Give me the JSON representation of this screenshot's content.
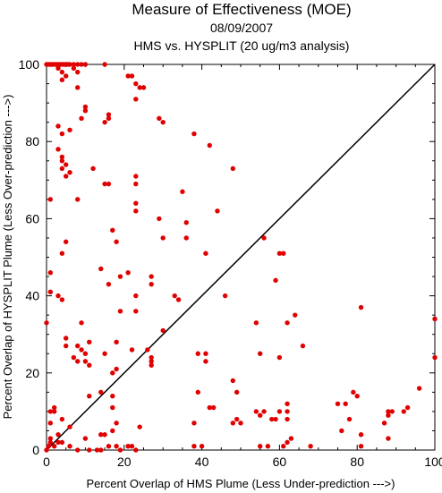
{
  "chart_data": {
    "type": "scatter",
    "title": "Measure of Effectiveness (MOE)",
    "subtitle_date": "08/09/2007",
    "subtitle": "HMS vs. HYSPLIT  (20 ug/m3 analysis)",
    "xlabel": "Percent Overlap of HMS Plume (Less Under-prediction --->)",
    "ylabel": "Percent Overlap of HYSPLIT Plume (Less Over-prediction --->)",
    "xlim": [
      0,
      100
    ],
    "ylim": [
      0,
      100
    ],
    "xticks": [
      "0",
      "20",
      "40",
      "60",
      "80",
      "100"
    ],
    "yticks": [
      "0",
      "20",
      "40",
      "60",
      "80",
      "100"
    ],
    "reference_line": "y = x",
    "point_color": "#e00000",
    "grid": false,
    "series": [
      {
        "points": [
          [
            0,
            100
          ],
          [
            0.5,
            100
          ],
          [
            1,
            100
          ],
          [
            1.5,
            100
          ],
          [
            2,
            100
          ],
          [
            2.5,
            100
          ],
          [
            3,
            100
          ],
          [
            3.5,
            100
          ],
          [
            4,
            100
          ],
          [
            4.5,
            100
          ],
          [
            5,
            100
          ],
          [
            5.5,
            100
          ],
          [
            6,
            100
          ],
          [
            7,
            100
          ],
          [
            8,
            100
          ],
          [
            9,
            100
          ],
          [
            10,
            100
          ],
          [
            15,
            100
          ],
          [
            3,
            99
          ],
          [
            4,
            98
          ],
          [
            7,
            99
          ],
          [
            8,
            98
          ],
          [
            4,
            96
          ],
          [
            5,
            97
          ],
          [
            8,
            94
          ],
          [
            21,
            97
          ],
          [
            22,
            97
          ],
          [
            23,
            95
          ],
          [
            24,
            94
          ],
          [
            25,
            94
          ],
          [
            10,
            89
          ],
          [
            10,
            88
          ],
          [
            9,
            86
          ],
          [
            16,
            87
          ],
          [
            16,
            86
          ],
          [
            15,
            85
          ],
          [
            29,
            86
          ],
          [
            30,
            85
          ],
          [
            3,
            84
          ],
          [
            4,
            82
          ],
          [
            6,
            83
          ],
          [
            23,
            91
          ],
          [
            38,
            82
          ],
          [
            42,
            79
          ],
          [
            3,
            78
          ],
          [
            4,
            76
          ],
          [
            4,
            75
          ],
          [
            5,
            74
          ],
          [
            4,
            73
          ],
          [
            6,
            72
          ],
          [
            5,
            71
          ],
          [
            12,
            73
          ],
          [
            23,
            71
          ],
          [
            23,
            69
          ],
          [
            15,
            69
          ],
          [
            16,
            69
          ],
          [
            48,
            73
          ],
          [
            1,
            65
          ],
          [
            8,
            65
          ],
          [
            35,
            67
          ],
          [
            23,
            64
          ],
          [
            23,
            62
          ],
          [
            44,
            62
          ],
          [
            5,
            54
          ],
          [
            4,
            51
          ],
          [
            17,
            57
          ],
          [
            18,
            54
          ],
          [
            29,
            60
          ],
          [
            30,
            55
          ],
          [
            36,
            59
          ],
          [
            36,
            55
          ],
          [
            56,
            55
          ],
          [
            60,
            51
          ],
          [
            61,
            51
          ],
          [
            1,
            46
          ],
          [
            14,
            47
          ],
          [
            21,
            46
          ],
          [
            19,
            45
          ],
          [
            27,
            45
          ],
          [
            27,
            43
          ],
          [
            16,
            43
          ],
          [
            3,
            40
          ],
          [
            1,
            41
          ],
          [
            23,
            40
          ],
          [
            33,
            40
          ],
          [
            34,
            39
          ],
          [
            59,
            44
          ],
          [
            46,
            40
          ],
          [
            41,
            51
          ],
          [
            9,
            33
          ],
          [
            19,
            36
          ],
          [
            23,
            36
          ],
          [
            18,
            28
          ],
          [
            30,
            31
          ],
          [
            5,
            29
          ],
          [
            5,
            27
          ],
          [
            7,
            24
          ],
          [
            8,
            27
          ],
          [
            9,
            26
          ],
          [
            10,
            25
          ],
          [
            11,
            22
          ],
          [
            11,
            28
          ],
          [
            15,
            25
          ],
          [
            17,
            20
          ],
          [
            18,
            21
          ],
          [
            22,
            26
          ],
          [
            26,
            26
          ],
          [
            27,
            24
          ],
          [
            27,
            23
          ],
          [
            27,
            22
          ],
          [
            0,
            33
          ],
          [
            4,
            39
          ],
          [
            8,
            23
          ],
          [
            10,
            23
          ],
          [
            39,
            25
          ],
          [
            41,
            25
          ],
          [
            41,
            23
          ],
          [
            48,
            18
          ],
          [
            54,
            33
          ],
          [
            55,
            25
          ],
          [
            60,
            24
          ],
          [
            62,
            33
          ],
          [
            64,
            35
          ],
          [
            66,
            27
          ],
          [
            81,
            37
          ],
          [
            1,
            10
          ],
          [
            2,
            11
          ],
          [
            2,
            10
          ],
          [
            6,
            6
          ],
          [
            11,
            14
          ],
          [
            14,
            15
          ],
          [
            17,
            11
          ],
          [
            17,
            14
          ],
          [
            1,
            7
          ],
          [
            3,
            4
          ],
          [
            4,
            8
          ],
          [
            18,
            7
          ],
          [
            24,
            6
          ],
          [
            38,
            7
          ],
          [
            39,
            15
          ],
          [
            42,
            11
          ],
          [
            43,
            11
          ],
          [
            48,
            7
          ],
          [
            49,
            8
          ],
          [
            49,
            15
          ],
          [
            50,
            7
          ],
          [
            54,
            10
          ],
          [
            55,
            9
          ],
          [
            56,
            10
          ],
          [
            58,
            8
          ],
          [
            59,
            8
          ],
          [
            60,
            10
          ],
          [
            62,
            8
          ],
          [
            62,
            10
          ],
          [
            62,
            12
          ],
          [
            75,
            12
          ],
          [
            77,
            12
          ],
          [
            78,
            8
          ],
          [
            79,
            15
          ],
          [
            80,
            14
          ],
          [
            87,
            7
          ],
          [
            88,
            9
          ],
          [
            88,
            10
          ],
          [
            89,
            10
          ],
          [
            92,
            10
          ],
          [
            93,
            11
          ],
          [
            96,
            16
          ],
          [
            100,
            34
          ],
          [
            100,
            24
          ],
          [
            0,
            0
          ],
          [
            0.5,
            1
          ],
          [
            1,
            2
          ],
          [
            1,
            3
          ],
          [
            2,
            1
          ],
          [
            3,
            2
          ],
          [
            4,
            2
          ],
          [
            6,
            1
          ],
          [
            8,
            0
          ],
          [
            10,
            3
          ],
          [
            11,
            0
          ],
          [
            13,
            0
          ],
          [
            14,
            0
          ],
          [
            14,
            4
          ],
          [
            15,
            4
          ],
          [
            16,
            1
          ],
          [
            17,
            5
          ],
          [
            18,
            1
          ],
          [
            19,
            0
          ],
          [
            21,
            1
          ],
          [
            22,
            1
          ],
          [
            23,
            0
          ],
          [
            38,
            1
          ],
          [
            40,
            1
          ],
          [
            55,
            1
          ],
          [
            57,
            1
          ],
          [
            61,
            1
          ],
          [
            62,
            2
          ],
          [
            63,
            3
          ],
          [
            68,
            1
          ],
          [
            76,
            5
          ],
          [
            81,
            1
          ],
          [
            81,
            4
          ],
          [
            88,
            3
          ]
        ]
      }
    ]
  }
}
